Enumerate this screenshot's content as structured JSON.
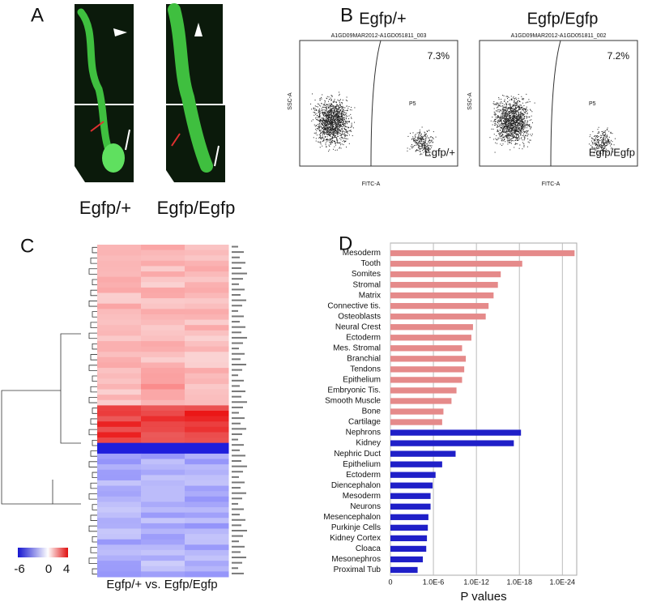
{
  "panel_a": {
    "label": "A",
    "captions": [
      "Egfp/+",
      "Egfp/Egfp"
    ]
  },
  "panel_b": {
    "label": "B",
    "plots": [
      {
        "title": "Egfp/+",
        "header": "A1GD09MAR2012-A1GD051811_003",
        "percent": "7.3%",
        "gate": "P5",
        "genotype": "Egfp/+",
        "y_axis": "SSC-A",
        "x_axis": "FITC-A"
      },
      {
        "title": "Egfp/Egfp",
        "header": "A1GD09MAR2012-A1GD051811_002",
        "percent": "7.2%",
        "gate": "P5",
        "genotype": "Egfp/Egfp",
        "y_axis": "SSC-A",
        "x_axis": "FITC-A"
      }
    ]
  },
  "panel_c": {
    "label": "C",
    "scale_labels": [
      "-6",
      "0",
      "4"
    ],
    "caption": "Egfp/+ vs. Egfp/Egfp"
  },
  "panel_label_d": "D",
  "chart_data": {
    "type": "hbar",
    "x_label": "P values",
    "x_scale": "log",
    "categories": [
      "Mesoderm",
      "Tooth",
      "Somites",
      "Stromal",
      "Matrix",
      "Connective tis.",
      "Osteoblasts",
      "Neural Crest",
      "Ectoderm",
      "Mes. Stromal",
      "Branchial",
      "Tendons",
      "Epithelium",
      "Embryonic Tis.",
      "Smooth Muscle",
      "Bone",
      "Cartilage",
      "Nephrons",
      "Kidney",
      "Nephric Duct",
      "Epithelium",
      "Ectoderm",
      "Diencephalon",
      "Mesoderm",
      "Neurons",
      "Mesencephalon",
      "Purkinje Cells",
      "Kidney Cortex",
      "Cloaca",
      "Mesonephros",
      "Proximal Tub"
    ],
    "values": [
      2e-26,
      4e-19,
      4e-16,
      1e-15,
      4e-15,
      2e-14,
      5e-14,
      3e-12,
      5e-12,
      1e-10,
      3e-11,
      5e-11,
      1e-10,
      6e-10,
      3e-09,
      4e-08,
      6e-08,
      6e-19,
      6e-18,
      8e-10,
      6e-08,
      5e-07,
      1.3e-06,
      2.5e-06,
      2.5e-06,
      5e-06,
      6e-06,
      8e-06,
      1e-05,
      3e-05,
      0.00016
    ],
    "colors": [
      "#e58a8a",
      "#e58a8a",
      "#e58a8a",
      "#e58a8a",
      "#e58a8a",
      "#e58a8a",
      "#e58a8a",
      "#e58a8a",
      "#e58a8a",
      "#e58a8a",
      "#e58a8a",
      "#e58a8a",
      "#e58a8a",
      "#e58a8a",
      "#e58a8a",
      "#e58a8a",
      "#e58a8a",
      "#1f1fc8",
      "#1f1fc8",
      "#1f1fc8",
      "#1f1fc8",
      "#1f1fc8",
      "#1f1fc8",
      "#1f1fc8",
      "#1f1fc8",
      "#1f1fc8",
      "#1f1fc8",
      "#1f1fc8",
      "#1f1fc8",
      "#1f1fc8",
      "#1f1fc8"
    ],
    "xlim": [
      1,
      1e-26
    ],
    "xticks": [
      {
        "value": 1,
        "label": "0"
      },
      {
        "value": 1e-06,
        "label": "1.0E-6"
      },
      {
        "value": 1e-12,
        "label": "1.0E-12"
      },
      {
        "value": 1e-18,
        "label": "1.0E-18"
      },
      {
        "value": 1e-24,
        "label": "1.0E-24"
      }
    ],
    "grid": true
  }
}
